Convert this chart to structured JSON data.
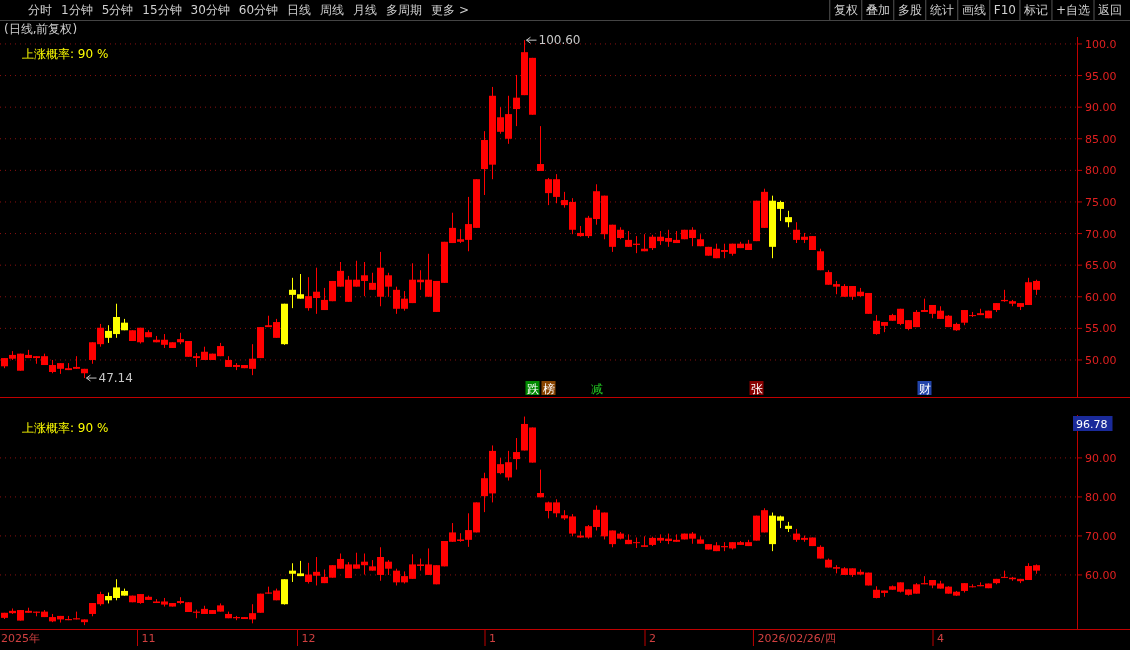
{
  "chart_data": [
    {
      "type": "other",
      "annotations": [
        "分时",
        "1分钟",
        "5分钟",
        "15分钟",
        "30分钟",
        "60分钟",
        "日线",
        "周线",
        "月线",
        "多周期",
        "更多 >"
      ]
    },
    {
      "type": "other",
      "annotations": [
        "复权",
        "叠加",
        "多股",
        "统计",
        "画线",
        "F10",
        "标记",
        "+自选",
        "返回"
      ]
    },
    {
      "type": "candlestick",
      "title": "(日线,前复权)",
      "ylim": [
        44.3,
        101.1
      ],
      "yticks": [
        {
          "value": 50,
          "label": "50.00"
        },
        {
          "value": 55,
          "label": "55.00"
        },
        {
          "value": 60,
          "label": "60.00"
        },
        {
          "value": 65,
          "label": "65.00"
        },
        {
          "value": 70,
          "label": "70.00"
        },
        {
          "value": 75,
          "label": "75.00"
        },
        {
          "value": 80,
          "label": "80.00"
        },
        {
          "value": 85,
          "label": "85.00"
        },
        {
          "value": 90,
          "label": "90.00"
        },
        {
          "value": 95,
          "label": "95.00"
        },
        {
          "value": 100,
          "label": "100.0"
        }
      ],
      "grid": "y",
      "tick_labels": "y",
      "annotations": [
        "上涨概率: 90 %",
        "100.60",
        "47.14",
        "跌",
        "榜",
        "减",
        "张",
        "财"
      ],
      "categories": [
        null,
        null,
        null,
        null,
        null,
        null,
        null,
        null,
        null,
        null,
        null,
        null,
        null,
        null,
        null,
        null,
        null,
        null,
        null,
        null,
        null,
        null,
        null,
        null,
        null,
        null,
        null,
        null,
        null,
        null,
        null,
        null,
        null,
        null,
        null,
        null,
        null,
        null,
        null,
        null,
        null,
        null,
        null,
        null,
        null,
        null,
        null,
        null,
        null,
        null,
        null,
        null,
        null,
        null,
        null,
        null,
        null,
        null,
        null,
        null,
        null,
        null,
        null,
        null,
        null,
        null,
        null,
        null,
        null,
        null,
        null,
        null,
        null,
        null,
        null,
        null,
        null,
        null,
        null,
        null,
        null,
        null,
        null,
        null,
        null,
        null,
        null,
        null,
        null,
        null,
        null,
        null,
        null,
        null,
        null,
        null,
        null,
        null,
        null,
        null,
        null,
        null,
        null,
        null,
        null,
        null,
        null,
        null,
        null,
        null,
        null,
        null,
        null,
        null,
        null,
        null,
        null,
        null,
        null,
        null,
        null,
        null,
        null,
        null,
        null,
        null,
        null,
        null,
        null,
        null
      ],
      "colors": [
        "#ff0000",
        "#ff0000",
        "#ff0000",
        "#ff0000",
        "#ff0000",
        "#ff0000",
        "#ff0000",
        "#ff0000",
        "#ff0000",
        "#ff0000",
        "#ff0000",
        "#ff0000",
        "#ff0000",
        "#ffff00",
        "#ffff00",
        "#ffff00",
        "#ff0000",
        "#ff0000",
        "#ff0000",
        "#ff0000",
        "#ff0000",
        "#ff0000",
        "#ff0000",
        "#ff0000",
        "#ff0000",
        "#ff0000",
        "#ff0000",
        "#ff0000",
        "#ff0000",
        "#ff0000",
        "#ff0000",
        "#ff0000",
        "#ff0000",
        "#ff0000",
        "#ff0000",
        "#ffff00",
        "#ffff00",
        "#ffff00",
        "#ff0000",
        "#ff0000",
        "#ff0000",
        "#ff0000",
        "#ff0000",
        "#ff0000",
        "#ff0000",
        "#ff0000",
        "#ff0000",
        "#ff0000",
        "#ff0000",
        "#ff0000",
        "#ff0000",
        "#ff0000",
        "#ff0000",
        "#ff0000",
        "#ff0000",
        "#ff0000",
        "#ff0000",
        "#ff0000",
        "#ff0000",
        "#ff0000",
        "#ff0000",
        "#ff0000",
        "#ff0000",
        "#ff0000",
        "#ff0000",
        "#ff0000",
        "#ff0000",
        "#ff0000",
        "#ff0000",
        "#ff0000",
        "#ff0000",
        "#ff0000",
        "#ff0000",
        "#ff0000",
        "#ff0000",
        "#ff0000",
        "#ff0000",
        "#ff0000",
        "#ff0000",
        "#ff0000",
        "#ff0000",
        "#ff0000",
        "#ff0000",
        "#ff0000",
        "#ff0000",
        "#ff0000",
        "#ff0000",
        "#ff0000",
        "#ff0000",
        "#ff0000",
        "#ff0000",
        "#ff0000",
        "#ff0000",
        "#ff0000",
        "#ff0000",
        "#ff0000",
        "#ffff00",
        "#ffff00",
        "#ffff00",
        "#ff0000",
        "#ff0000",
        "#ff0000",
        "#ff0000",
        "#ff0000",
        "#ff0000",
        "#ff0000",
        "#ff0000",
        "#ff0000",
        "#ff0000",
        "#ff0000",
        "#ff0000",
        "#ff0000",
        "#ff0000",
        "#ff0000",
        "#ff0000",
        "#ff0000",
        "#ff0000",
        "#ff0000",
        "#ff0000",
        "#ff0000",
        "#ff0000",
        "#ff0000",
        "#ff0000",
        "#ff0000",
        "#ff0000",
        "#ff0000",
        "#ff0000",
        "#ff0000",
        "#ff0000",
        "#ff0000"
      ],
      "ohlc": [
        [
          49.0,
          50.3,
          48.7,
          50.3
        ],
        [
          50.2,
          51.4,
          50.0,
          50.8
        ],
        [
          48.3,
          51.0,
          48.3,
          51.0
        ],
        [
          50.3,
          51.6,
          50.3,
          50.8
        ],
        [
          50.3,
          50.6,
          49.4,
          50.6
        ],
        [
          49.2,
          51.0,
          49.2,
          50.6
        ],
        [
          48.1,
          50.0,
          47.9,
          49.2
        ],
        [
          48.6,
          49.5,
          47.8,
          49.5
        ],
        [
          48.4,
          49.5,
          48.4,
          48.7
        ],
        [
          48.6,
          50.6,
          48.6,
          48.9
        ],
        [
          47.9,
          48.6,
          47.14,
          48.6
        ],
        [
          50.0,
          52.8,
          49.4,
          52.8
        ],
        [
          52.5,
          55.7,
          52.1,
          55.1
        ],
        [
          53.5,
          55.5,
          52.7,
          54.6
        ],
        [
          54.1,
          58.9,
          53.5,
          56.8
        ],
        [
          54.7,
          56.5,
          54.7,
          55.9
        ],
        [
          53.0,
          54.7,
          53.0,
          54.7
        ],
        [
          52.8,
          55.1,
          52.6,
          55.1
        ],
        [
          53.6,
          54.7,
          53.6,
          54.4
        ],
        [
          52.8,
          53.8,
          52.8,
          53.2
        ],
        [
          52.4,
          54.1,
          51.9,
          53.2
        ],
        [
          51.9,
          52.8,
          51.9,
          52.8
        ],
        [
          52.8,
          54.3,
          52.5,
          53.3
        ],
        [
          50.5,
          53.0,
          50.5,
          53.0
        ],
        [
          50.3,
          51.1,
          48.9,
          50.6
        ],
        [
          50.0,
          52.1,
          50.0,
          51.3
        ],
        [
          50.0,
          51.0,
          50.0,
          51.0
        ],
        [
          50.6,
          52.7,
          50.6,
          52.2
        ],
        [
          48.9,
          50.6,
          48.9,
          50.0
        ],
        [
          48.9,
          49.5,
          48.4,
          49.2
        ],
        [
          48.7,
          49.2,
          48.7,
          49.2
        ],
        [
          48.6,
          52.5,
          47.6,
          50.2
        ],
        [
          50.3,
          55.2,
          50.3,
          55.2
        ],
        [
          55.2,
          57.0,
          55.2,
          55.5
        ],
        [
          53.5,
          56.5,
          53.5,
          56.0
        ],
        [
          52.5,
          58.9,
          52.4,
          58.9
        ],
        [
          60.3,
          63.0,
          58.2,
          61.1
        ],
        [
          59.7,
          63.6,
          59.7,
          60.4
        ],
        [
          58.2,
          63.1,
          57.8,
          60.1
        ],
        [
          59.8,
          64.6,
          57.3,
          60.8
        ],
        [
          57.9,
          61.4,
          57.9,
          59.5
        ],
        [
          59.3,
          62.5,
          59.3,
          62.5
        ],
        [
          61.6,
          65.5,
          61.6,
          64.1
        ],
        [
          59.2,
          63.3,
          59.2,
          62.7
        ],
        [
          61.6,
          65.7,
          61.6,
          62.7
        ],
        [
          62.5,
          65.5,
          60.1,
          63.4
        ],
        [
          61.1,
          63.8,
          61.1,
          62.2
        ],
        [
          60.0,
          67.1,
          58.5,
          64.6
        ],
        [
          61.6,
          63.8,
          60.0,
          63.4
        ],
        [
          58.1,
          61.6,
          57.3,
          61.1
        ],
        [
          58.1,
          60.9,
          57.8,
          59.7
        ],
        [
          59.0,
          65.3,
          59.0,
          62.7
        ],
        [
          62.3,
          64.2,
          61.1,
          62.7
        ],
        [
          60.0,
          66.8,
          60.0,
          62.7
        ],
        [
          57.6,
          62.5,
          57.6,
          62.5
        ],
        [
          62.2,
          68.7,
          62.2,
          68.7
        ],
        [
          68.5,
          73.3,
          68.5,
          70.9
        ],
        [
          68.7,
          70.7,
          68.5,
          69.1
        ],
        [
          69.0,
          75.8,
          67.2,
          71.5
        ],
        [
          70.9,
          78.6,
          70.9,
          78.6
        ],
        [
          80.2,
          86.2,
          76.1,
          84.8
        ],
        [
          80.9,
          93.2,
          78.6,
          91.8
        ],
        [
          86.1,
          90.0,
          85.8,
          88.4
        ],
        [
          85.0,
          91.8,
          84.2,
          88.9
        ],
        [
          89.7,
          95.1,
          87.0,
          91.5
        ],
        [
          91.9,
          100.6,
          91.9,
          98.7
        ],
        [
          88.8,
          97.8,
          88.8,
          97.8
        ],
        [
          79.9,
          87.0,
          79.9,
          81.0
        ],
        [
          76.4,
          78.8,
          74.5,
          78.6
        ],
        [
          75.8,
          79.4,
          74.8,
          78.6
        ],
        [
          74.5,
          76.6,
          74.1,
          75.3
        ],
        [
          70.6,
          75.6,
          69.9,
          75.0
        ],
        [
          69.6,
          71.2,
          69.5,
          70.1
        ],
        [
          69.6,
          72.8,
          69.3,
          72.5
        ],
        [
          72.3,
          77.8,
          71.4,
          76.7
        ],
        [
          69.9,
          76.0,
          69.1,
          76.0
        ],
        [
          67.9,
          71.4,
          67.1,
          71.4
        ],
        [
          69.3,
          71.0,
          69.1,
          70.6
        ],
        [
          67.9,
          70.4,
          67.9,
          69.0
        ],
        [
          68.2,
          69.6,
          66.9,
          68.4
        ],
        [
          67.2,
          69.9,
          67.2,
          67.6
        ],
        [
          67.7,
          69.8,
          67.4,
          69.5
        ],
        [
          68.8,
          70.4,
          68.2,
          69.5
        ],
        [
          68.7,
          70.6,
          67.9,
          69.3
        ],
        [
          68.5,
          70.4,
          68.5,
          69.0
        ],
        [
          69.1,
          70.6,
          69.1,
          70.6
        ],
        [
          69.3,
          71.0,
          68.0,
          70.6
        ],
        [
          68.0,
          69.9,
          68.0,
          69.1
        ],
        [
          66.5,
          67.9,
          66.5,
          67.9
        ],
        [
          66.1,
          68.4,
          66.1,
          67.6
        ],
        [
          67.1,
          68.4,
          66.1,
          67.4
        ],
        [
          66.8,
          68.4,
          66.5,
          68.4
        ],
        [
          67.7,
          68.7,
          67.7,
          68.4
        ],
        [
          67.4,
          69.0,
          67.4,
          68.4
        ],
        [
          68.8,
          75.2,
          68.8,
          75.2
        ],
        [
          70.9,
          77.1,
          70.9,
          76.6
        ],
        [
          67.9,
          76.0,
          66.1,
          75.2
        ],
        [
          73.9,
          75.2,
          72.0,
          75.0
        ],
        [
          71.8,
          73.6,
          71.0,
          72.6
        ],
        [
          69.0,
          71.8,
          68.5,
          70.6
        ],
        [
          69.0,
          70.1,
          68.5,
          69.5
        ],
        [
          67.4,
          69.6,
          67.4,
          69.6
        ],
        [
          64.2,
          67.6,
          64.2,
          67.2
        ],
        [
          61.9,
          64.2,
          61.9,
          63.9
        ],
        [
          61.6,
          62.5,
          60.4,
          62.0
        ],
        [
          60.0,
          62.0,
          60.0,
          61.7
        ],
        [
          60.0,
          61.7,
          59.5,
          61.7
        ],
        [
          60.1,
          61.4,
          60.0,
          60.8
        ],
        [
          57.3,
          60.6,
          57.3,
          60.6
        ],
        [
          54.1,
          57.1,
          54.0,
          56.2
        ],
        [
          55.4,
          56.0,
          54.4,
          56.0
        ],
        [
          56.2,
          57.3,
          56.2,
          57.1
        ],
        [
          55.7,
          58.1,
          55.5,
          58.1
        ],
        [
          54.9,
          56.3,
          54.7,
          56.3
        ],
        [
          55.2,
          57.9,
          55.2,
          57.6
        ],
        [
          57.6,
          59.7,
          57.6,
          57.9
        ],
        [
          57.3,
          58.7,
          56.6,
          58.7
        ],
        [
          56.5,
          58.5,
          56.5,
          57.8
        ],
        [
          55.2,
          57.1,
          55.2,
          57.0
        ],
        [
          54.7,
          55.9,
          54.6,
          55.7
        ],
        [
          55.9,
          57.9,
          55.5,
          57.9
        ],
        [
          57.0,
          57.6,
          56.8,
          57.1
        ],
        [
          57.1,
          58.1,
          57.1,
          57.4
        ],
        [
          56.6,
          57.8,
          56.6,
          57.8
        ],
        [
          57.9,
          59.0,
          57.6,
          59.0
        ],
        [
          59.3,
          61.1,
          59.2,
          59.5
        ],
        [
          58.9,
          59.5,
          58.5,
          59.3
        ],
        [
          58.4,
          59.0,
          57.9,
          59.0
        ],
        [
          58.7,
          63.0,
          58.7,
          62.3
        ],
        [
          61.1,
          62.7,
          60.3,
          62.5
        ]
      ]
    },
    {
      "type": "candlestick",
      "ylim": [
        46.4,
        101.0
      ],
      "yticks": [
        {
          "value": 60,
          "label": "60.00"
        },
        {
          "value": 70,
          "label": "70.00"
        },
        {
          "value": 80,
          "label": "80.00"
        },
        {
          "value": 90,
          "label": "90.00"
        }
      ],
      "grid": "y",
      "annotations": [
        "上涨概率: 90 %",
        "96.78"
      ],
      "categories": [
        null,
        null,
        "2025年",
        null,
        null,
        null,
        null,
        null,
        null,
        null,
        null,
        null,
        null,
        null,
        null,
        null,
        null,
        null,
        "11",
        null,
        null,
        null,
        null,
        null,
        null,
        null,
        null,
        null,
        null,
        null,
        null,
        null,
        null,
        null,
        null,
        null,
        null,
        null,
        "12",
        null,
        null,
        null,
        null,
        null,
        null,
        null,
        null,
        null,
        null,
        null,
        null,
        null,
        null,
        null,
        null,
        null,
        null,
        null,
        null,
        null,
        null,
        "1",
        null,
        null,
        null,
        null,
        null,
        null,
        null,
        null,
        null,
        null,
        null,
        null,
        null,
        null,
        null,
        null,
        null,
        null,
        null,
        "2",
        null,
        null,
        null,
        null,
        null,
        null,
        null,
        null,
        null,
        null,
        null,
        null,
        null,
        null,
        null,
        null,
        null,
        "2026/02/26/四",
        null,
        null,
        null,
        null,
        null,
        null,
        null,
        null,
        null,
        null,
        null,
        null,
        null,
        null,
        null,
        null,
        null,
        "4",
        null,
        null,
        null,
        null,
        null,
        null,
        null,
        null,
        null,
        null,
        null,
        null
      ],
      "colors": [
        "#ff0000",
        "#ff0000",
        "#ff0000",
        "#ff0000",
        "#ff0000",
        "#ff0000",
        "#ff0000",
        "#ff0000",
        "#ff0000",
        "#ff0000",
        "#ff0000",
        "#ff0000",
        "#ff0000",
        "#ffff00",
        "#ffff00",
        "#ffff00",
        "#ff0000",
        "#ff0000",
        "#ff0000",
        "#ff0000",
        "#ff0000",
        "#ff0000",
        "#ff0000",
        "#ff0000",
        "#ff0000",
        "#ff0000",
        "#ff0000",
        "#ff0000",
        "#ff0000",
        "#ff0000",
        "#ff0000",
        "#ff0000",
        "#ff0000",
        "#ff0000",
        "#ff0000",
        "#ffff00",
        "#ffff00",
        "#ffff00",
        "#ff0000",
        "#ff0000",
        "#ff0000",
        "#ff0000",
        "#ff0000",
        "#ff0000",
        "#ff0000",
        "#ff0000",
        "#ff0000",
        "#ff0000",
        "#ff0000",
        "#ff0000",
        "#ff0000",
        "#ff0000",
        "#ff0000",
        "#ff0000",
        "#ff0000",
        "#ff0000",
        "#ff0000",
        "#ff0000",
        "#ff0000",
        "#ff0000",
        "#ff0000",
        "#ff0000",
        "#ff0000",
        "#ff0000",
        "#ff0000",
        "#ff0000",
        "#ff0000",
        "#ff0000",
        "#ff0000",
        "#ff0000",
        "#ff0000",
        "#ff0000",
        "#ff0000",
        "#ff0000",
        "#ff0000",
        "#ff0000",
        "#ff0000",
        "#ff0000",
        "#ff0000",
        "#ff0000",
        "#ff0000",
        "#ff0000",
        "#ff0000",
        "#ff0000",
        "#ff0000",
        "#ff0000",
        "#ff0000",
        "#ff0000",
        "#ff0000",
        "#ff0000",
        "#ff0000",
        "#ff0000",
        "#ff0000",
        "#ff0000",
        "#ff0000",
        "#ff0000",
        "#ffff00",
        "#ffff00",
        "#ffff00",
        "#ff0000",
        "#ff0000",
        "#ff0000",
        "#ff0000",
        "#ff0000",
        "#ff0000",
        "#ff0000",
        "#ff0000",
        "#ff0000",
        "#ff0000",
        "#ff0000",
        "#ff0000",
        "#ff0000",
        "#ff0000",
        "#ff0000",
        "#ff0000",
        "#ff0000",
        "#ff0000",
        "#ff0000",
        "#ff0000",
        "#ff0000",
        "#ff0000",
        "#ff0000",
        "#ff0000",
        "#ff0000",
        "#ff0000",
        "#ff0000",
        "#ff0000",
        "#ff0000",
        "#ff0000",
        "#ff0000"
      ],
      "ohlc": [
        [
          49.0,
          50.3,
          48.7,
          50.3
        ],
        [
          50.2,
          51.4,
          50.0,
          50.8
        ],
        [
          48.3,
          51.0,
          48.3,
          51.0
        ],
        [
          50.3,
          51.6,
          50.3,
          50.8
        ],
        [
          50.3,
          50.6,
          49.4,
          50.6
        ],
        [
          49.2,
          51.0,
          49.2,
          50.6
        ],
        [
          48.1,
          50.0,
          47.9,
          49.2
        ],
        [
          48.6,
          49.5,
          47.8,
          49.5
        ],
        [
          48.4,
          49.5,
          48.4,
          48.7
        ],
        [
          48.6,
          50.6,
          48.6,
          48.9
        ],
        [
          47.9,
          48.6,
          47.14,
          48.6
        ],
        [
          50.0,
          52.8,
          49.4,
          52.8
        ],
        [
          52.5,
          55.7,
          52.1,
          55.1
        ],
        [
          53.5,
          55.5,
          52.7,
          54.6
        ],
        [
          54.1,
          58.9,
          53.5,
          56.8
        ],
        [
          54.7,
          56.5,
          54.7,
          55.9
        ],
        [
          53.0,
          54.7,
          53.0,
          54.7
        ],
        [
          52.8,
          55.1,
          52.6,
          55.1
        ],
        [
          53.6,
          54.7,
          53.6,
          54.4
        ],
        [
          52.8,
          53.8,
          52.8,
          53.2
        ],
        [
          52.4,
          54.1,
          51.9,
          53.2
        ],
        [
          51.9,
          52.8,
          51.9,
          52.8
        ],
        [
          52.8,
          54.3,
          52.5,
          53.3
        ],
        [
          50.5,
          53.0,
          50.5,
          53.0
        ],
        [
          50.3,
          51.1,
          48.9,
          50.6
        ],
        [
          50.0,
          52.1,
          50.0,
          51.3
        ],
        [
          50.0,
          51.0,
          50.0,
          51.0
        ],
        [
          50.6,
          52.7,
          50.6,
          52.2
        ],
        [
          48.9,
          50.6,
          48.9,
          50.0
        ],
        [
          48.9,
          49.5,
          48.4,
          49.2
        ],
        [
          48.7,
          49.2,
          48.7,
          49.2
        ],
        [
          48.6,
          52.5,
          47.6,
          50.2
        ],
        [
          50.3,
          55.2,
          50.3,
          55.2
        ],
        [
          55.2,
          57.0,
          55.2,
          55.5
        ],
        [
          53.5,
          56.5,
          53.5,
          56.0
        ],
        [
          52.5,
          58.9,
          52.4,
          58.9
        ],
        [
          60.3,
          63.0,
          58.2,
          61.1
        ],
        [
          59.7,
          63.6,
          59.7,
          60.4
        ],
        [
          58.2,
          63.1,
          57.8,
          60.1
        ],
        [
          59.8,
          64.6,
          57.3,
          60.8
        ],
        [
          57.9,
          61.4,
          57.9,
          59.5
        ],
        [
          59.3,
          62.5,
          59.3,
          62.5
        ],
        [
          61.6,
          65.5,
          61.6,
          64.1
        ],
        [
          59.2,
          63.3,
          59.2,
          62.7
        ],
        [
          61.6,
          65.7,
          61.6,
          62.7
        ],
        [
          62.5,
          65.5,
          60.1,
          63.4
        ],
        [
          61.1,
          63.8,
          61.1,
          62.2
        ],
        [
          60.0,
          67.1,
          58.5,
          64.6
        ],
        [
          61.6,
          63.8,
          60.0,
          63.4
        ],
        [
          58.1,
          61.6,
          57.3,
          61.1
        ],
        [
          58.1,
          60.9,
          57.8,
          59.7
        ],
        [
          59.0,
          65.3,
          59.0,
          62.7
        ],
        [
          62.3,
          64.2,
          61.1,
          62.7
        ],
        [
          60.0,
          66.8,
          60.0,
          62.7
        ],
        [
          57.6,
          62.5,
          57.6,
          62.5
        ],
        [
          62.2,
          68.7,
          62.2,
          68.7
        ],
        [
          68.5,
          73.3,
          68.5,
          70.9
        ],
        [
          68.7,
          70.7,
          68.5,
          69.1
        ],
        [
          69.0,
          75.8,
          67.2,
          71.5
        ],
        [
          70.9,
          78.6,
          70.9,
          78.6
        ],
        [
          80.2,
          86.2,
          76.1,
          84.8
        ],
        [
          80.9,
          93.2,
          78.6,
          91.8
        ],
        [
          86.1,
          90.0,
          85.8,
          88.4
        ],
        [
          85.0,
          91.8,
          84.2,
          88.9
        ],
        [
          89.7,
          95.1,
          87.0,
          91.5
        ],
        [
          91.9,
          100.6,
          91.9,
          98.7
        ],
        [
          88.8,
          97.8,
          88.8,
          97.8
        ],
        [
          79.9,
          87.0,
          79.9,
          81.0
        ],
        [
          76.4,
          78.8,
          74.5,
          78.6
        ],
        [
          75.8,
          79.4,
          74.8,
          78.6
        ],
        [
          74.5,
          76.6,
          74.1,
          75.3
        ],
        [
          70.6,
          75.6,
          69.9,
          75.0
        ],
        [
          69.6,
          71.2,
          69.5,
          70.1
        ],
        [
          69.6,
          72.8,
          69.3,
          72.5
        ],
        [
          72.3,
          77.8,
          71.4,
          76.7
        ],
        [
          69.9,
          76.0,
          69.1,
          76.0
        ],
        [
          67.9,
          71.4,
          67.1,
          71.4
        ],
        [
          69.3,
          71.0,
          69.1,
          70.6
        ],
        [
          67.9,
          70.4,
          67.9,
          69.0
        ],
        [
          68.2,
          69.6,
          66.9,
          68.4
        ],
        [
          67.2,
          69.9,
          67.2,
          67.6
        ],
        [
          67.7,
          69.8,
          67.4,
          69.5
        ],
        [
          68.8,
          70.4,
          68.2,
          69.5
        ],
        [
          68.7,
          70.6,
          67.9,
          69.3
        ],
        [
          68.5,
          70.4,
          68.5,
          69.0
        ],
        [
          69.1,
          70.6,
          69.1,
          70.6
        ],
        [
          69.3,
          71.0,
          68.0,
          70.6
        ],
        [
          68.0,
          69.9,
          68.0,
          69.1
        ],
        [
          66.5,
          67.9,
          66.5,
          67.9
        ],
        [
          66.1,
          68.4,
          66.1,
          67.6
        ],
        [
          67.1,
          68.4,
          66.1,
          67.4
        ],
        [
          66.8,
          68.4,
          66.5,
          68.4
        ],
        [
          67.7,
          68.7,
          67.7,
          68.4
        ],
        [
          67.4,
          69.0,
          67.4,
          68.4
        ],
        [
          68.8,
          75.2,
          68.8,
          75.2
        ],
        [
          70.9,
          77.1,
          70.9,
          76.6
        ],
        [
          67.9,
          76.0,
          66.1,
          75.2
        ],
        [
          73.9,
          75.2,
          72.0,
          75.0
        ],
        [
          71.8,
          73.6,
          71.0,
          72.6
        ],
        [
          69.0,
          71.8,
          68.5,
          70.6
        ],
        [
          69.0,
          70.1,
          68.5,
          69.5
        ],
        [
          67.4,
          69.6,
          67.4,
          69.6
        ],
        [
          64.2,
          67.6,
          64.2,
          67.2
        ],
        [
          61.9,
          64.2,
          61.9,
          63.9
        ],
        [
          61.6,
          62.5,
          60.4,
          62.0
        ],
        [
          60.0,
          62.0,
          60.0,
          61.7
        ],
        [
          60.0,
          61.7,
          59.5,
          61.7
        ],
        [
          60.1,
          61.4,
          60.0,
          60.8
        ],
        [
          57.3,
          60.6,
          57.3,
          60.6
        ],
        [
          54.1,
          57.1,
          54.0,
          56.2
        ],
        [
          55.4,
          56.0,
          54.4,
          56.0
        ],
        [
          56.2,
          57.3,
          56.2,
          57.1
        ],
        [
          55.7,
          58.1,
          55.5,
          58.1
        ],
        [
          54.9,
          56.3,
          54.7,
          56.3
        ],
        [
          55.2,
          57.9,
          55.2,
          57.6
        ],
        [
          57.6,
          59.7,
          57.6,
          57.9
        ],
        [
          57.3,
          58.7,
          56.6,
          58.7
        ],
        [
          56.5,
          58.5,
          56.5,
          57.8
        ],
        [
          55.2,
          57.1,
          55.2,
          57.0
        ],
        [
          54.7,
          55.9,
          54.6,
          55.7
        ],
        [
          55.9,
          57.9,
          55.5,
          57.9
        ],
        [
          57.0,
          57.6,
          56.8,
          57.1
        ],
        [
          57.1,
          58.1,
          57.1,
          57.4
        ],
        [
          56.6,
          57.8,
          56.6,
          57.8
        ],
        [
          57.9,
          59.0,
          57.6,
          59.0
        ],
        [
          59.3,
          61.1,
          59.2,
          59.5
        ],
        [
          58.9,
          59.5,
          58.5,
          59.3
        ],
        [
          58.4,
          59.0,
          57.9,
          59.0
        ],
        [
          58.7,
          63.0,
          58.7,
          62.3
        ],
        [
          61.1,
          62.7,
          60.3,
          62.5
        ]
      ]
    }
  ]
}
